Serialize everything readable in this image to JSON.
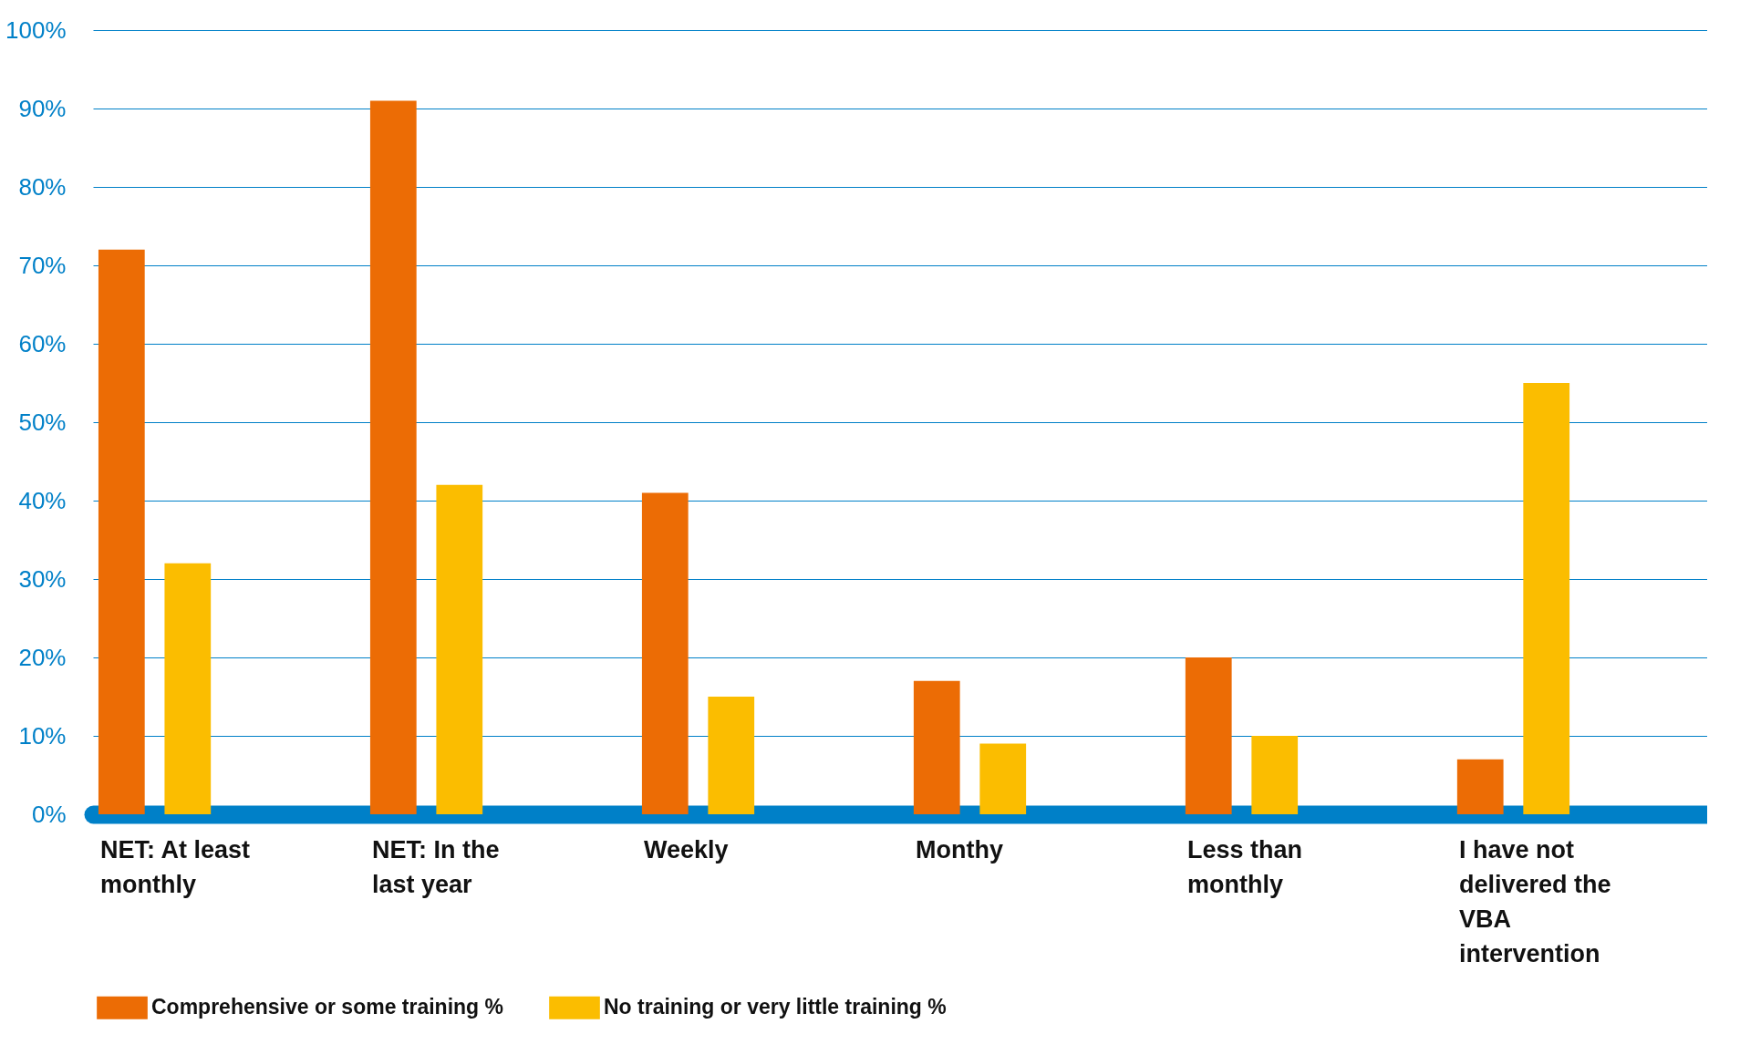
{
  "chart_data": {
    "type": "bar",
    "categories": [
      "NET: At least monthly",
      "NET: In the last year",
      "Weekly",
      "Monthy",
      "Less than monthly",
      "I have not delivered the VBA intervention"
    ],
    "series": [
      {
        "name": "Comprehensive or some training %",
        "color": "#ec6c05",
        "values": [
          72,
          91,
          41,
          17,
          20,
          7
        ]
      },
      {
        "name": "No training or very little training %",
        "color": "#fbbd00",
        "values": [
          32,
          42,
          15,
          9,
          10,
          55
        ]
      }
    ],
    "ylim": [
      0,
      100
    ],
    "yticks": [
      {
        "value": 0,
        "label": "0%"
      },
      {
        "value": 10,
        "label": "10%"
      },
      {
        "value": 20,
        "label": "20%"
      },
      {
        "value": 30,
        "label": "30%"
      },
      {
        "value": 40,
        "label": "40%"
      },
      {
        "value": 50,
        "label": "50%"
      },
      {
        "value": 60,
        "label": "60%"
      },
      {
        "value": 70,
        "label": "70%"
      },
      {
        "value": 80,
        "label": "80%"
      },
      {
        "value": 90,
        "label": "90%"
      },
      {
        "value": 100,
        "label": "100%"
      }
    ],
    "grid": "y",
    "legend": "bottom"
  }
}
